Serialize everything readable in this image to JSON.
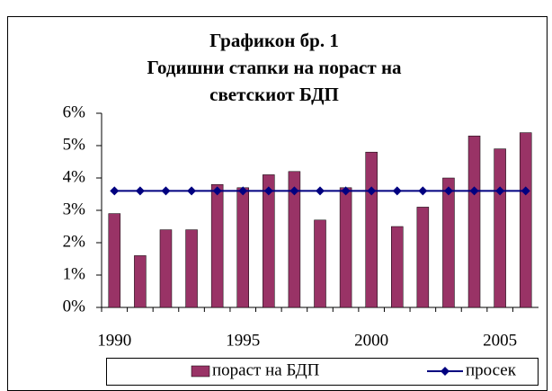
{
  "chart_data": {
    "type": "bar",
    "title": [
      "Графикон бр. 1",
      "Годишни стапки на пораст на",
      "светскиот БДП"
    ],
    "categories": [
      "1990",
      null,
      null,
      null,
      null,
      "1995",
      null,
      null,
      null,
      null,
      "2000",
      null,
      null,
      null,
      null,
      "2005",
      null
    ],
    "series": [
      {
        "name": "пораст на БДП",
        "type": "bar",
        "color": "#993366",
        "values": [
          2.9,
          1.6,
          2.4,
          2.4,
          3.8,
          3.7,
          4.1,
          4.2,
          2.7,
          3.7,
          4.8,
          2.5,
          3.1,
          4.0,
          5.3,
          4.9,
          5.4
        ]
      },
      {
        "name": "просек",
        "type": "line",
        "color": "#000080",
        "values": [
          3.6,
          3.6,
          3.6,
          3.6,
          3.6,
          3.6,
          3.6,
          3.6,
          3.6,
          3.6,
          3.6,
          3.6,
          3.6,
          3.6,
          3.6,
          3.6,
          3.6
        ]
      }
    ],
    "ylim": [
      0,
      6
    ],
    "yticks": [
      {
        "value": 0,
        "label": "0%"
      },
      {
        "value": 1,
        "label": "1%"
      },
      {
        "value": 2,
        "label": "2%"
      },
      {
        "value": 3,
        "label": "3%"
      },
      {
        "value": 4,
        "label": "4%"
      },
      {
        "value": 5,
        "label": "5%"
      },
      {
        "value": 6,
        "label": "6%"
      }
    ],
    "grid": false,
    "legend": "bottom"
  }
}
